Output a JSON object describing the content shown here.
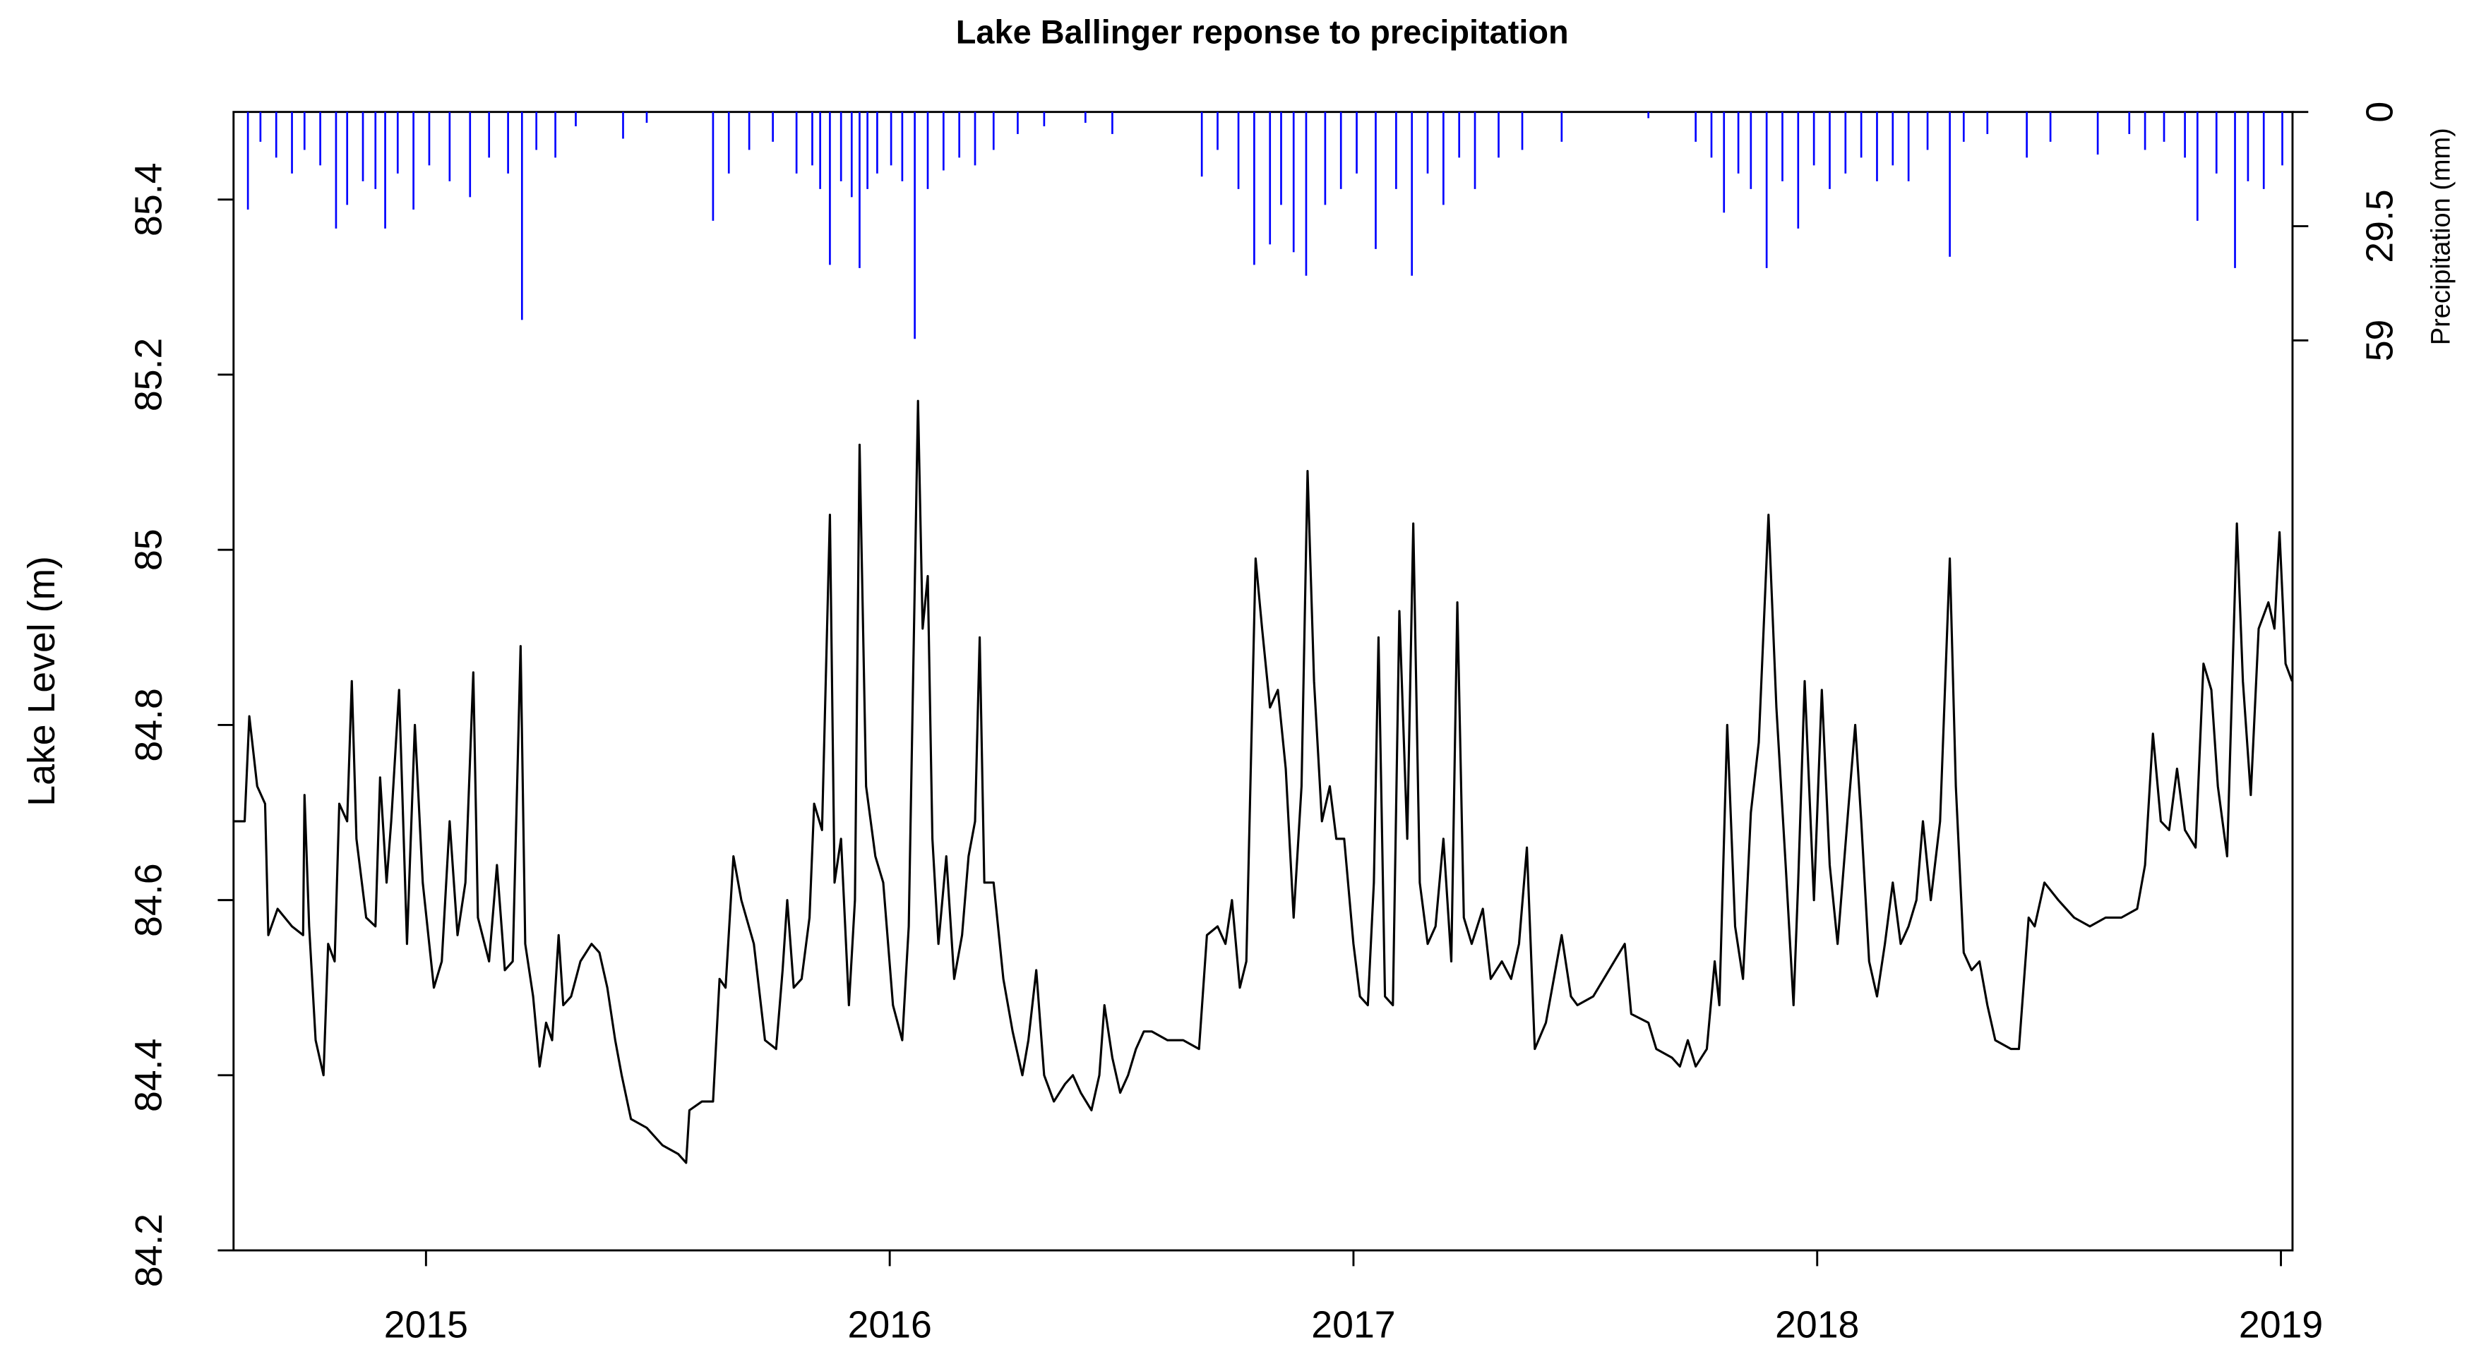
{
  "chart_data": {
    "type": "line",
    "title": "Lake Ballinger reponse to precipitation",
    "y_label": "Lake Level (m)",
    "y2_label": "Precipitation (mm)",
    "xlim": [
      2014.585,
      2019.025
    ],
    "xticks": [
      2015,
      2016,
      2017,
      2018,
      2019
    ],
    "ylim": [
      84.2,
      85.5
    ],
    "yticks": [
      84.2,
      84.4,
      84.6,
      84.8,
      85.0,
      85.2,
      85.4
    ],
    "y2lim": [
      294,
      0
    ],
    "y2ticks": [
      0,
      29.5,
      59
    ],
    "series": [
      {
        "type": "line",
        "color": "#000000",
        "x": [
          2014.585,
          2014.609,
          2014.619,
          2014.636,
          2014.653,
          2014.66,
          2014.68,
          2014.711,
          2014.735,
          2014.738,
          2014.748,
          2014.762,
          2014.779,
          2014.789,
          2014.803,
          2014.813,
          2014.83,
          2014.84,
          2014.85,
          2014.871,
          2014.891,
          2014.901,
          2014.915,
          2014.925,
          2014.942,
          2014.959,
          2014.976,
          2014.993,
          2015.007,
          2015.017,
          2015.034,
          2015.051,
          2015.068,
          2015.085,
          2015.102,
          2015.112,
          2015.136,
          2015.153,
          2015.17,
          2015.187,
          2015.204,
          2015.214,
          2015.231,
          2015.245,
          2015.259,
          2015.272,
          2015.286,
          2015.296,
          2015.313,
          2015.333,
          2015.357,
          2015.374,
          2015.391,
          2015.408,
          2015.422,
          2015.442,
          2015.476,
          2015.51,
          2015.544,
          2015.561,
          2015.568,
          2015.595,
          2015.619,
          2015.633,
          2015.646,
          2015.663,
          2015.68,
          2015.707,
          2015.731,
          2015.755,
          2015.769,
          2015.779,
          2015.793,
          2015.81,
          2015.827,
          2015.837,
          2015.854,
          2015.871,
          2015.881,
          2015.895,
          2015.912,
          2015.925,
          2015.935,
          2015.949,
          2015.969,
          2015.986,
          2016.007,
          2016.027,
          2016.041,
          2016.061,
          2016.071,
          2016.082,
          2016.092,
          2016.105,
          2016.122,
          2016.139,
          2016.156,
          2016.17,
          2016.184,
          2016.194,
          2016.204,
          2016.224,
          2016.245,
          2016.265,
          2016.286,
          2016.299,
          2016.316,
          2016.333,
          2016.354,
          2016.378,
          2016.395,
          2016.412,
          2016.435,
          2016.452,
          2016.463,
          2016.48,
          2016.497,
          2016.514,
          2016.531,
          2016.548,
          2016.565,
          2016.599,
          2016.633,
          2016.667,
          2016.684,
          2016.707,
          2016.724,
          2016.738,
          2016.755,
          2016.769,
          2016.789,
          2016.803,
          2016.82,
          2016.837,
          2016.854,
          2016.871,
          2016.888,
          2016.901,
          2016.915,
          2016.932,
          2016.949,
          2016.963,
          2016.98,
          2017.0,
          2017.014,
          2017.031,
          2017.044,
          2017.054,
          2017.068,
          2017.085,
          2017.099,
          2017.116,
          2017.129,
          2017.143,
          2017.16,
          2017.177,
          2017.194,
          2017.211,
          2017.224,
          2017.238,
          2017.255,
          2017.279,
          2017.296,
          2017.32,
          2017.34,
          2017.357,
          2017.374,
          2017.391,
          2017.415,
          2017.432,
          2017.449,
          2017.469,
          2017.483,
          2017.517,
          2017.551,
          2017.585,
          2017.599,
          2017.636,
          2017.653,
          2017.687,
          2017.704,
          2017.721,
          2017.738,
          2017.762,
          2017.779,
          2017.789,
          2017.806,
          2017.823,
          2017.84,
          2017.857,
          2017.874,
          2017.895,
          2017.912,
          2017.932,
          2017.949,
          2017.959,
          2017.973,
          2017.993,
          2018.01,
          2018.027,
          2018.044,
          2018.068,
          2018.082,
          2018.095,
          2018.112,
          2018.129,
          2018.146,
          2018.163,
          2018.18,
          2018.197,
          2018.214,
          2018.228,
          2018.245,
          2018.265,
          2018.286,
          2018.299,
          2018.316,
          2018.333,
          2018.35,
          2018.367,
          2018.384,
          2018.418,
          2018.435,
          2018.456,
          2018.469,
          2018.49,
          2018.52,
          2018.554,
          2018.588,
          2018.622,
          2018.656,
          2018.69,
          2018.707,
          2018.724,
          2018.741,
          2018.759,
          2018.776,
          2018.793,
          2018.816,
          2018.833,
          2018.85,
          2018.864,
          2018.884,
          2018.905,
          2018.918,
          2018.935,
          2018.952,
          2018.973,
          2018.986,
          2018.997,
          2019.01,
          2019.024
        ],
        "values": [
          84.69,
          84.69,
          84.81,
          84.73,
          84.71,
          84.56,
          84.59,
          84.57,
          84.56,
          84.72,
          84.57,
          84.44,
          84.4,
          84.55,
          84.53,
          84.71,
          84.69,
          84.85,
          84.67,
          84.58,
          84.57,
          84.74,
          84.62,
          84.69,
          84.84,
          84.55,
          84.8,
          84.62,
          84.55,
          84.5,
          84.53,
          84.69,
          84.56,
          84.62,
          84.86,
          84.58,
          84.53,
          84.64,
          84.52,
          84.53,
          84.89,
          84.55,
          84.49,
          84.41,
          84.46,
          84.44,
          84.56,
          84.48,
          84.49,
          84.53,
          84.55,
          84.54,
          84.5,
          84.44,
          84.4,
          84.35,
          84.34,
          84.32,
          84.31,
          84.3,
          84.36,
          84.37,
          84.37,
          84.51,
          84.5,
          84.65,
          84.6,
          84.55,
          84.44,
          84.43,
          84.52,
          84.6,
          84.5,
          84.51,
          84.58,
          84.71,
          84.68,
          85.04,
          84.62,
          84.67,
          84.48,
          84.6,
          85.12,
          84.73,
          84.65,
          84.62,
          84.48,
          84.44,
          84.57,
          85.17,
          84.91,
          84.97,
          84.67,
          84.55,
          84.65,
          84.51,
          84.56,
          84.65,
          84.69,
          84.9,
          84.62,
          84.62,
          84.51,
          84.45,
          84.4,
          84.44,
          84.52,
          84.4,
          84.37,
          84.39,
          84.4,
          84.38,
          84.36,
          84.4,
          84.48,
          84.42,
          84.38,
          84.4,
          84.43,
          84.45,
          84.45,
          84.44,
          84.44,
          84.43,
          84.56,
          84.57,
          84.55,
          84.6,
          84.5,
          84.53,
          84.99,
          84.91,
          84.82,
          84.84,
          84.75,
          84.58,
          84.73,
          85.09,
          84.85,
          84.69,
          84.73,
          84.67,
          84.67,
          84.55,
          84.49,
          84.48,
          84.62,
          84.9,
          84.49,
          84.48,
          84.93,
          84.67,
          85.03,
          84.62,
          84.55,
          84.57,
          84.67,
          84.53,
          84.94,
          84.58,
          84.55,
          84.59,
          84.51,
          84.53,
          84.51,
          84.55,
          84.66,
          84.43,
          84.46,
          84.51,
          84.56,
          84.49,
          84.48,
          84.49,
          84.52,
          84.55,
          84.47,
          84.46,
          84.43,
          84.42,
          84.41,
          84.44,
          84.41,
          84.43,
          84.53,
          84.48,
          84.8,
          84.57,
          84.51,
          84.7,
          84.78,
          85.04,
          84.82,
          84.64,
          84.48,
          84.62,
          84.85,
          84.6,
          84.84,
          84.64,
          84.55,
          84.71,
          84.8,
          84.69,
          84.53,
          84.49,
          84.55,
          84.62,
          84.55,
          84.57,
          84.6,
          84.69,
          84.6,
          84.69,
          84.99,
          84.73,
          84.54,
          84.52,
          84.53,
          84.48,
          84.44,
          84.43,
          84.43,
          84.58,
          84.57,
          84.62,
          84.6,
          84.58,
          84.57,
          84.58,
          84.58,
          84.59,
          84.64,
          84.79,
          84.69,
          84.68,
          84.75,
          84.68,
          84.66,
          84.87,
          84.84,
          84.73,
          84.65,
          85.03,
          84.85,
          84.72,
          84.91,
          84.94,
          84.91,
          85.02,
          84.87,
          84.85
        ]
      },
      {
        "type": "bar",
        "axis": "y2",
        "color": "#0000ff",
        "x": [
          2014.616,
          2014.643,
          2014.677,
          2014.711,
          2014.738,
          2014.772,
          2014.806,
          2014.83,
          2014.864,
          2014.891,
          2014.912,
          2014.939,
          2014.973,
          2015.007,
          2015.051,
          2015.095,
          2015.136,
          2015.177,
          2015.207,
          2015.238,
          2015.279,
          2015.323,
          2015.425,
          2015.476,
          2015.619,
          2015.653,
          2015.697,
          2015.748,
          2015.799,
          2015.833,
          2015.85,
          2015.871,
          2015.895,
          2015.918,
          2015.935,
          2015.952,
          2015.973,
          2016.003,
          2016.027,
          2016.054,
          2016.082,
          2016.116,
          2016.15,
          2016.184,
          2016.224,
          2016.276,
          2016.333,
          2016.422,
          2016.48,
          2016.673,
          2016.707,
          2016.752,
          2016.786,
          2016.82,
          2016.844,
          2016.871,
          2016.898,
          2016.939,
          2016.973,
          2017.007,
          2017.048,
          2017.092,
          2017.126,
          2017.16,
          2017.194,
          2017.228,
          2017.262,
          2017.313,
          2017.364,
          2017.449,
          2017.636,
          2017.738,
          2017.772,
          2017.799,
          2017.83,
          2017.857,
          2017.891,
          2017.925,
          2017.959,
          2017.993,
          2018.027,
          2018.061,
          2018.095,
          2018.129,
          2018.163,
          2018.197,
          2018.238,
          2018.286,
          2018.316,
          2018.367,
          2018.452,
          2018.503,
          2018.605,
          2018.673,
          2018.707,
          2018.748,
          2018.793,
          2018.82,
          2018.861,
          2018.901,
          2018.929,
          2018.963,
          2019.003
        ],
        "values": [
          25.2,
          7.7,
          11.8,
          15.9,
          9.8,
          13.8,
          30.1,
          24.0,
          17.9,
          19.9,
          30.1,
          15.9,
          25.2,
          13.8,
          17.9,
          22.0,
          11.8,
          15.9,
          53.7,
          9.8,
          11.8,
          3.7,
          6.9,
          2.8,
          28.1,
          15.9,
          9.8,
          7.7,
          15.9,
          13.8,
          19.9,
          39.5,
          17.9,
          22.0,
          40.3,
          19.9,
          15.9,
          13.8,
          17.9,
          58.6,
          19.9,
          15.1,
          11.8,
          13.8,
          9.8,
          5.7,
          3.7,
          2.8,
          5.7,
          16.7,
          9.8,
          19.9,
          39.5,
          34.2,
          24.0,
          36.2,
          42.3,
          24.0,
          19.9,
          15.9,
          35.4,
          19.9,
          42.3,
          15.9,
          24.0,
          11.8,
          19.9,
          11.8,
          9.8,
          7.7,
          1.6,
          7.7,
          11.8,
          26.0,
          15.9,
          19.9,
          40.3,
          17.9,
          30.1,
          13.8,
          19.9,
          15.9,
          11.8,
          17.9,
          13.8,
          17.9,
          9.8,
          37.4,
          7.7,
          5.7,
          11.8,
          7.7,
          11.0,
          5.7,
          9.8,
          7.7,
          11.8,
          28.1,
          15.9,
          40.3,
          17.9,
          19.9,
          13.8
        ]
      }
    ]
  }
}
